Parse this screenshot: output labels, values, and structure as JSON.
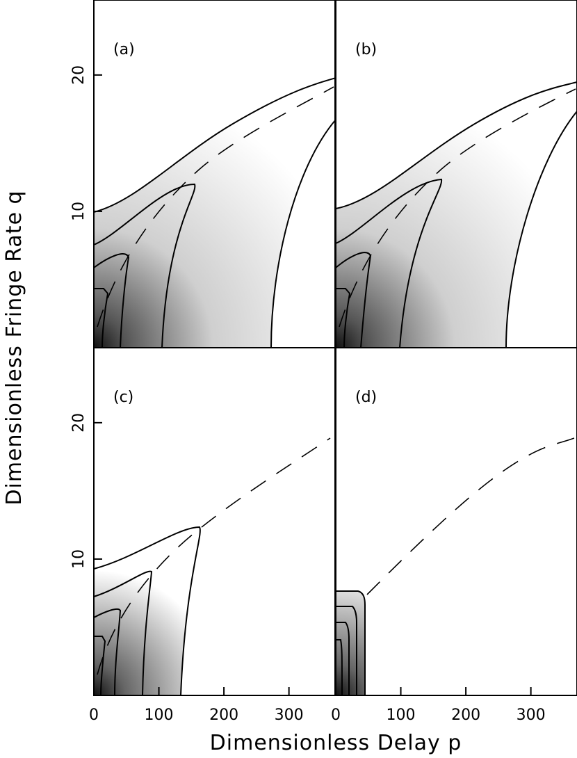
{
  "chart_data": [
    {
      "type": "contour",
      "label": "(a)",
      "xlim": [
        0,
        372
      ],
      "ylim": [
        0,
        25.5
      ],
      "yticks": [
        10,
        20
      ]
    },
    {
      "type": "contour",
      "label": "(b)",
      "xlim": [
        0,
        372
      ],
      "ylim": [
        0,
        25.5
      ]
    },
    {
      "type": "contour",
      "label": "(c)",
      "xlim": [
        0,
        372
      ],
      "ylim": [
        0,
        25.5
      ],
      "xticks": [
        0,
        100,
        200,
        300
      ],
      "yticks": [
        10,
        20
      ],
      "xlabel": "Dimensionless Delay  p",
      "ylabel": "Dimensionless Fringe Rate q"
    },
    {
      "type": "contour",
      "label": "(d)",
      "xlim": [
        0,
        372
      ],
      "ylim": [
        0,
        25.5
      ],
      "xticks": [
        0,
        100,
        200,
        300
      ]
    }
  ]
}
